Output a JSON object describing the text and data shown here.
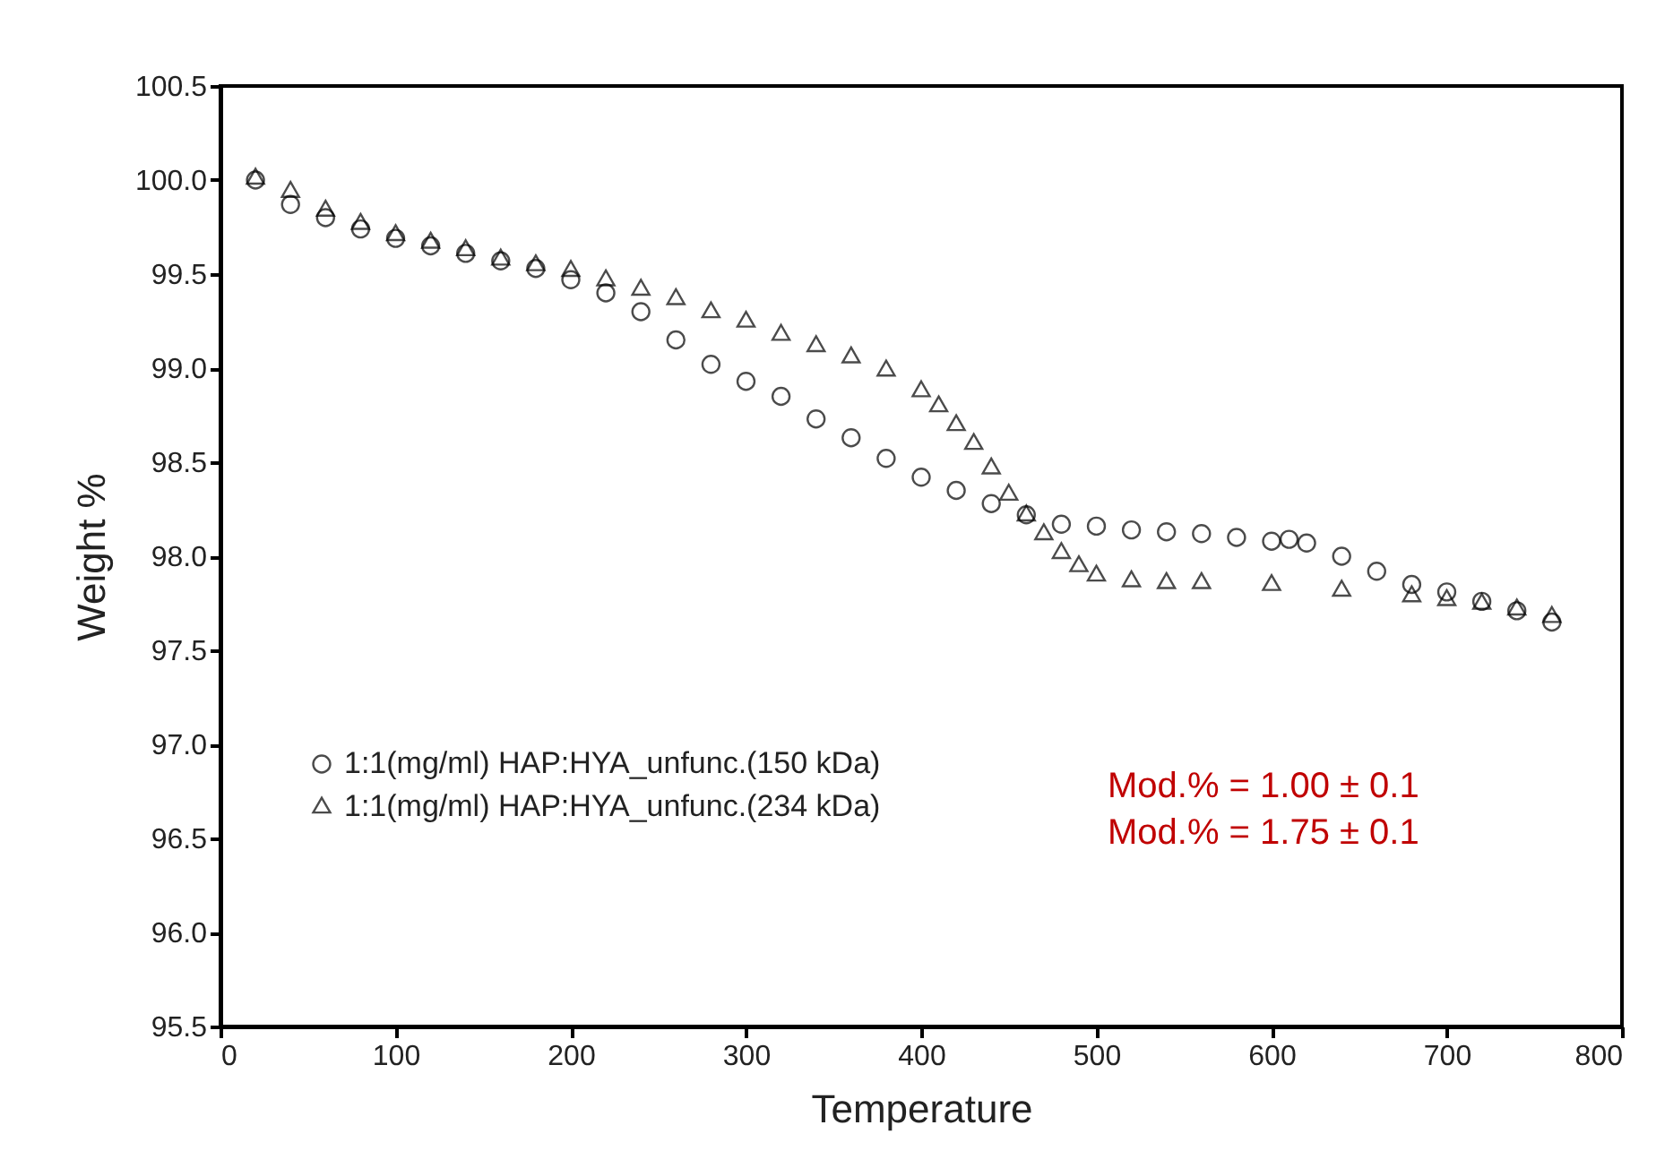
{
  "chart_data": {
    "type": "scatter",
    "xlabel": "Temperature",
    "ylabel": "Weight %",
    "xlim": [
      0,
      800
    ],
    "xticks": [
      0,
      100,
      200,
      300,
      400,
      500,
      600,
      700,
      800
    ],
    "ylim": [
      95.5,
      100.5
    ],
    "yticks": [
      {
        "value": 95.5,
        "label": "95.5"
      },
      {
        "value": 96,
        "label": "96.0"
      },
      {
        "value": 96.5,
        "label": "96.5"
      },
      {
        "value": 97,
        "label": "97.0"
      },
      {
        "value": 97.5,
        "label": "97.5"
      },
      {
        "value": 98,
        "label": "98.0"
      },
      {
        "value": 98.5,
        "label": "98.5"
      },
      {
        "value": 99,
        "label": "99.0"
      },
      {
        "value": 99.5,
        "label": "99.5"
      },
      {
        "value": 100,
        "label": "100.0"
      },
      {
        "value": 100.5,
        "label": "100.5"
      }
    ],
    "grid": false,
    "legend": "bottom left",
    "series": [
      {
        "name": "1:1(mg/ml) HAP:HYA_unfunc.(150 kDa)",
        "color": "#000000",
        "marker": "circle",
        "x": [
          20,
          40,
          60,
          80,
          100,
          120,
          140,
          160,
          180,
          200,
          220,
          240,
          260,
          280,
          300,
          320,
          340,
          360,
          380,
          400,
          420,
          440,
          460,
          480,
          500,
          520,
          540,
          560,
          580,
          600,
          610,
          620,
          640,
          660,
          680,
          700,
          720,
          740,
          760
        ],
        "values": [
          100.0,
          99.87,
          99.8,
          99.74,
          99.69,
          99.65,
          99.61,
          99.57,
          99.53,
          99.47,
          99.4,
          99.3,
          99.15,
          99.02,
          98.93,
          98.85,
          98.73,
          98.63,
          98.52,
          98.42,
          98.35,
          98.28,
          98.22,
          98.17,
          98.16,
          98.14,
          98.13,
          98.12,
          98.1,
          98.08,
          98.09,
          98.07,
          98.0,
          97.92,
          97.85,
          97.81,
          97.76,
          97.71,
          97.65
        ]
      },
      {
        "name": "1:1(mg/ml) HAP:HYA_unfunc.(234 kDa)",
        "color": "#000000",
        "marker": "triangle",
        "x": [
          20,
          40,
          60,
          80,
          100,
          120,
          140,
          160,
          180,
          200,
          220,
          240,
          260,
          280,
          300,
          320,
          340,
          360,
          380,
          400,
          410,
          420,
          430,
          440,
          450,
          460,
          470,
          480,
          490,
          500,
          520,
          540,
          560,
          600,
          640,
          680,
          700,
          720,
          740,
          760
        ],
        "values": [
          100.01,
          99.94,
          99.84,
          99.77,
          99.71,
          99.67,
          99.63,
          99.58,
          99.55,
          99.52,
          99.47,
          99.42,
          99.37,
          99.3,
          99.25,
          99.18,
          99.12,
          99.06,
          98.99,
          98.88,
          98.8,
          98.7,
          98.6,
          98.47,
          98.33,
          98.22,
          98.12,
          98.02,
          97.95,
          97.9,
          97.87,
          97.86,
          97.86,
          97.85,
          97.82,
          97.79,
          97.77,
          97.75,
          97.72,
          97.68
        ]
      }
    ],
    "annotations": [
      "Mod.% = 1.00 ± 0.1",
      "Mod.% = 1.75 ± 0.1"
    ]
  }
}
